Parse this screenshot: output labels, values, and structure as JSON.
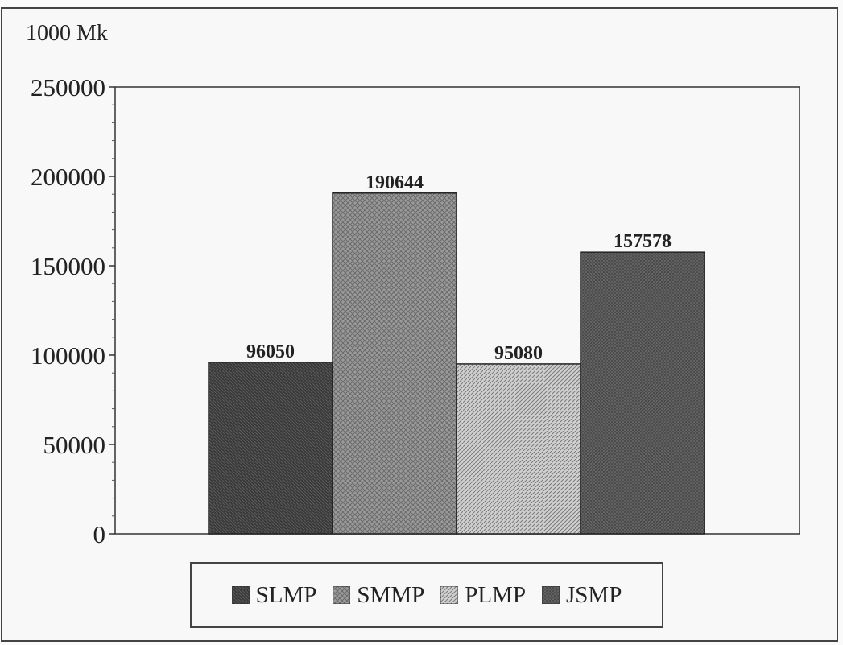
{
  "chart_data": {
    "type": "bar",
    "unit_label": "1000 Mk",
    "categories": [
      "SLMP",
      "SMMP",
      "PLMP",
      "JSMP"
    ],
    "values": [
      96050,
      190644,
      95080,
      157578
    ],
    "data_labels": [
      "96050",
      "190644",
      "95080",
      "157578"
    ],
    "ylim": [
      0,
      250000
    ],
    "yticks": [
      0,
      50000,
      100000,
      150000,
      200000,
      250000
    ],
    "ytick_labels": [
      "0",
      "50000",
      "100000",
      "150000",
      "200000",
      "250000"
    ],
    "grid": false,
    "legend": "bottom",
    "colors": [
      "#3a3a3a",
      "#8e8e8e",
      "#c4c4c4",
      "#5e5e5e"
    ]
  }
}
